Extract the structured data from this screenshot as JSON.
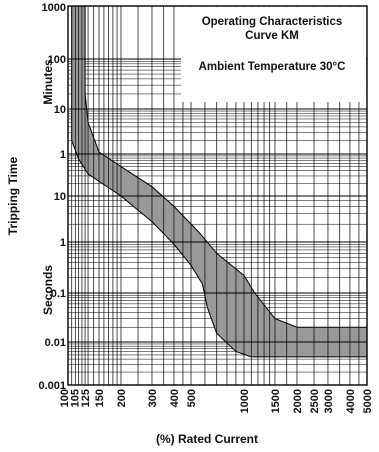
{
  "chart_data": {
    "type": "area",
    "title": "Operating Characteristics Curve KM",
    "subtitle": "Ambient Temperature 30°C",
    "xlabel": "(%) Rated Current",
    "ylabel": "Tripping Time",
    "ylabel_upper": "Minutes",
    "ylabel_lower": "Seconds",
    "x_scale": "log",
    "xlim": [
      100,
      5000
    ],
    "x_ticks": [
      "100",
      "105",
      "125",
      "150",
      "200",
      "300",
      "400",
      "500",
      "1000",
      "1500",
      "2000",
      "2500",
      "3000",
      "4000",
      "5000"
    ],
    "y_scale": "log",
    "y_ticks_minutes": [
      "1000",
      "100",
      "10",
      "1"
    ],
    "y_ticks_seconds": [
      "10",
      "1",
      "0.1",
      "0.01",
      "0.001"
    ],
    "grid": true,
    "band_color": "#999999",
    "series": [
      {
        "values_seconds": [
          [
            125,
            60000
          ],
          [
            125,
            1200
          ],
          [
            130,
            300
          ],
          [
            150,
            66
          ],
          [
            200,
            30
          ],
          [
            300,
            10
          ],
          [
            400,
            4
          ],
          [
            550,
            1.5
          ],
          [
            700,
            0.6
          ],
          [
            1000,
            0.22
          ],
          [
            1150,
            0.1
          ],
          [
            1500,
            0.03
          ],
          [
            2000,
            0.02
          ],
          [
            5000,
            0.02
          ]
        ]
      },
      {
        "values_seconds": [
          [
            105,
            60000
          ],
          [
            105,
            120
          ],
          [
            115,
            45
          ],
          [
            130,
            20
          ],
          [
            200,
            6
          ],
          [
            300,
            2.2
          ],
          [
            400,
            0.9
          ],
          [
            500,
            0.35
          ],
          [
            580,
            0.15
          ],
          [
            620,
            0.05
          ],
          [
            700,
            0.015
          ],
          [
            900,
            0.006
          ],
          [
            1100,
            0.0045
          ],
          [
            5000,
            0.0045
          ]
        ]
      }
    ]
  }
}
